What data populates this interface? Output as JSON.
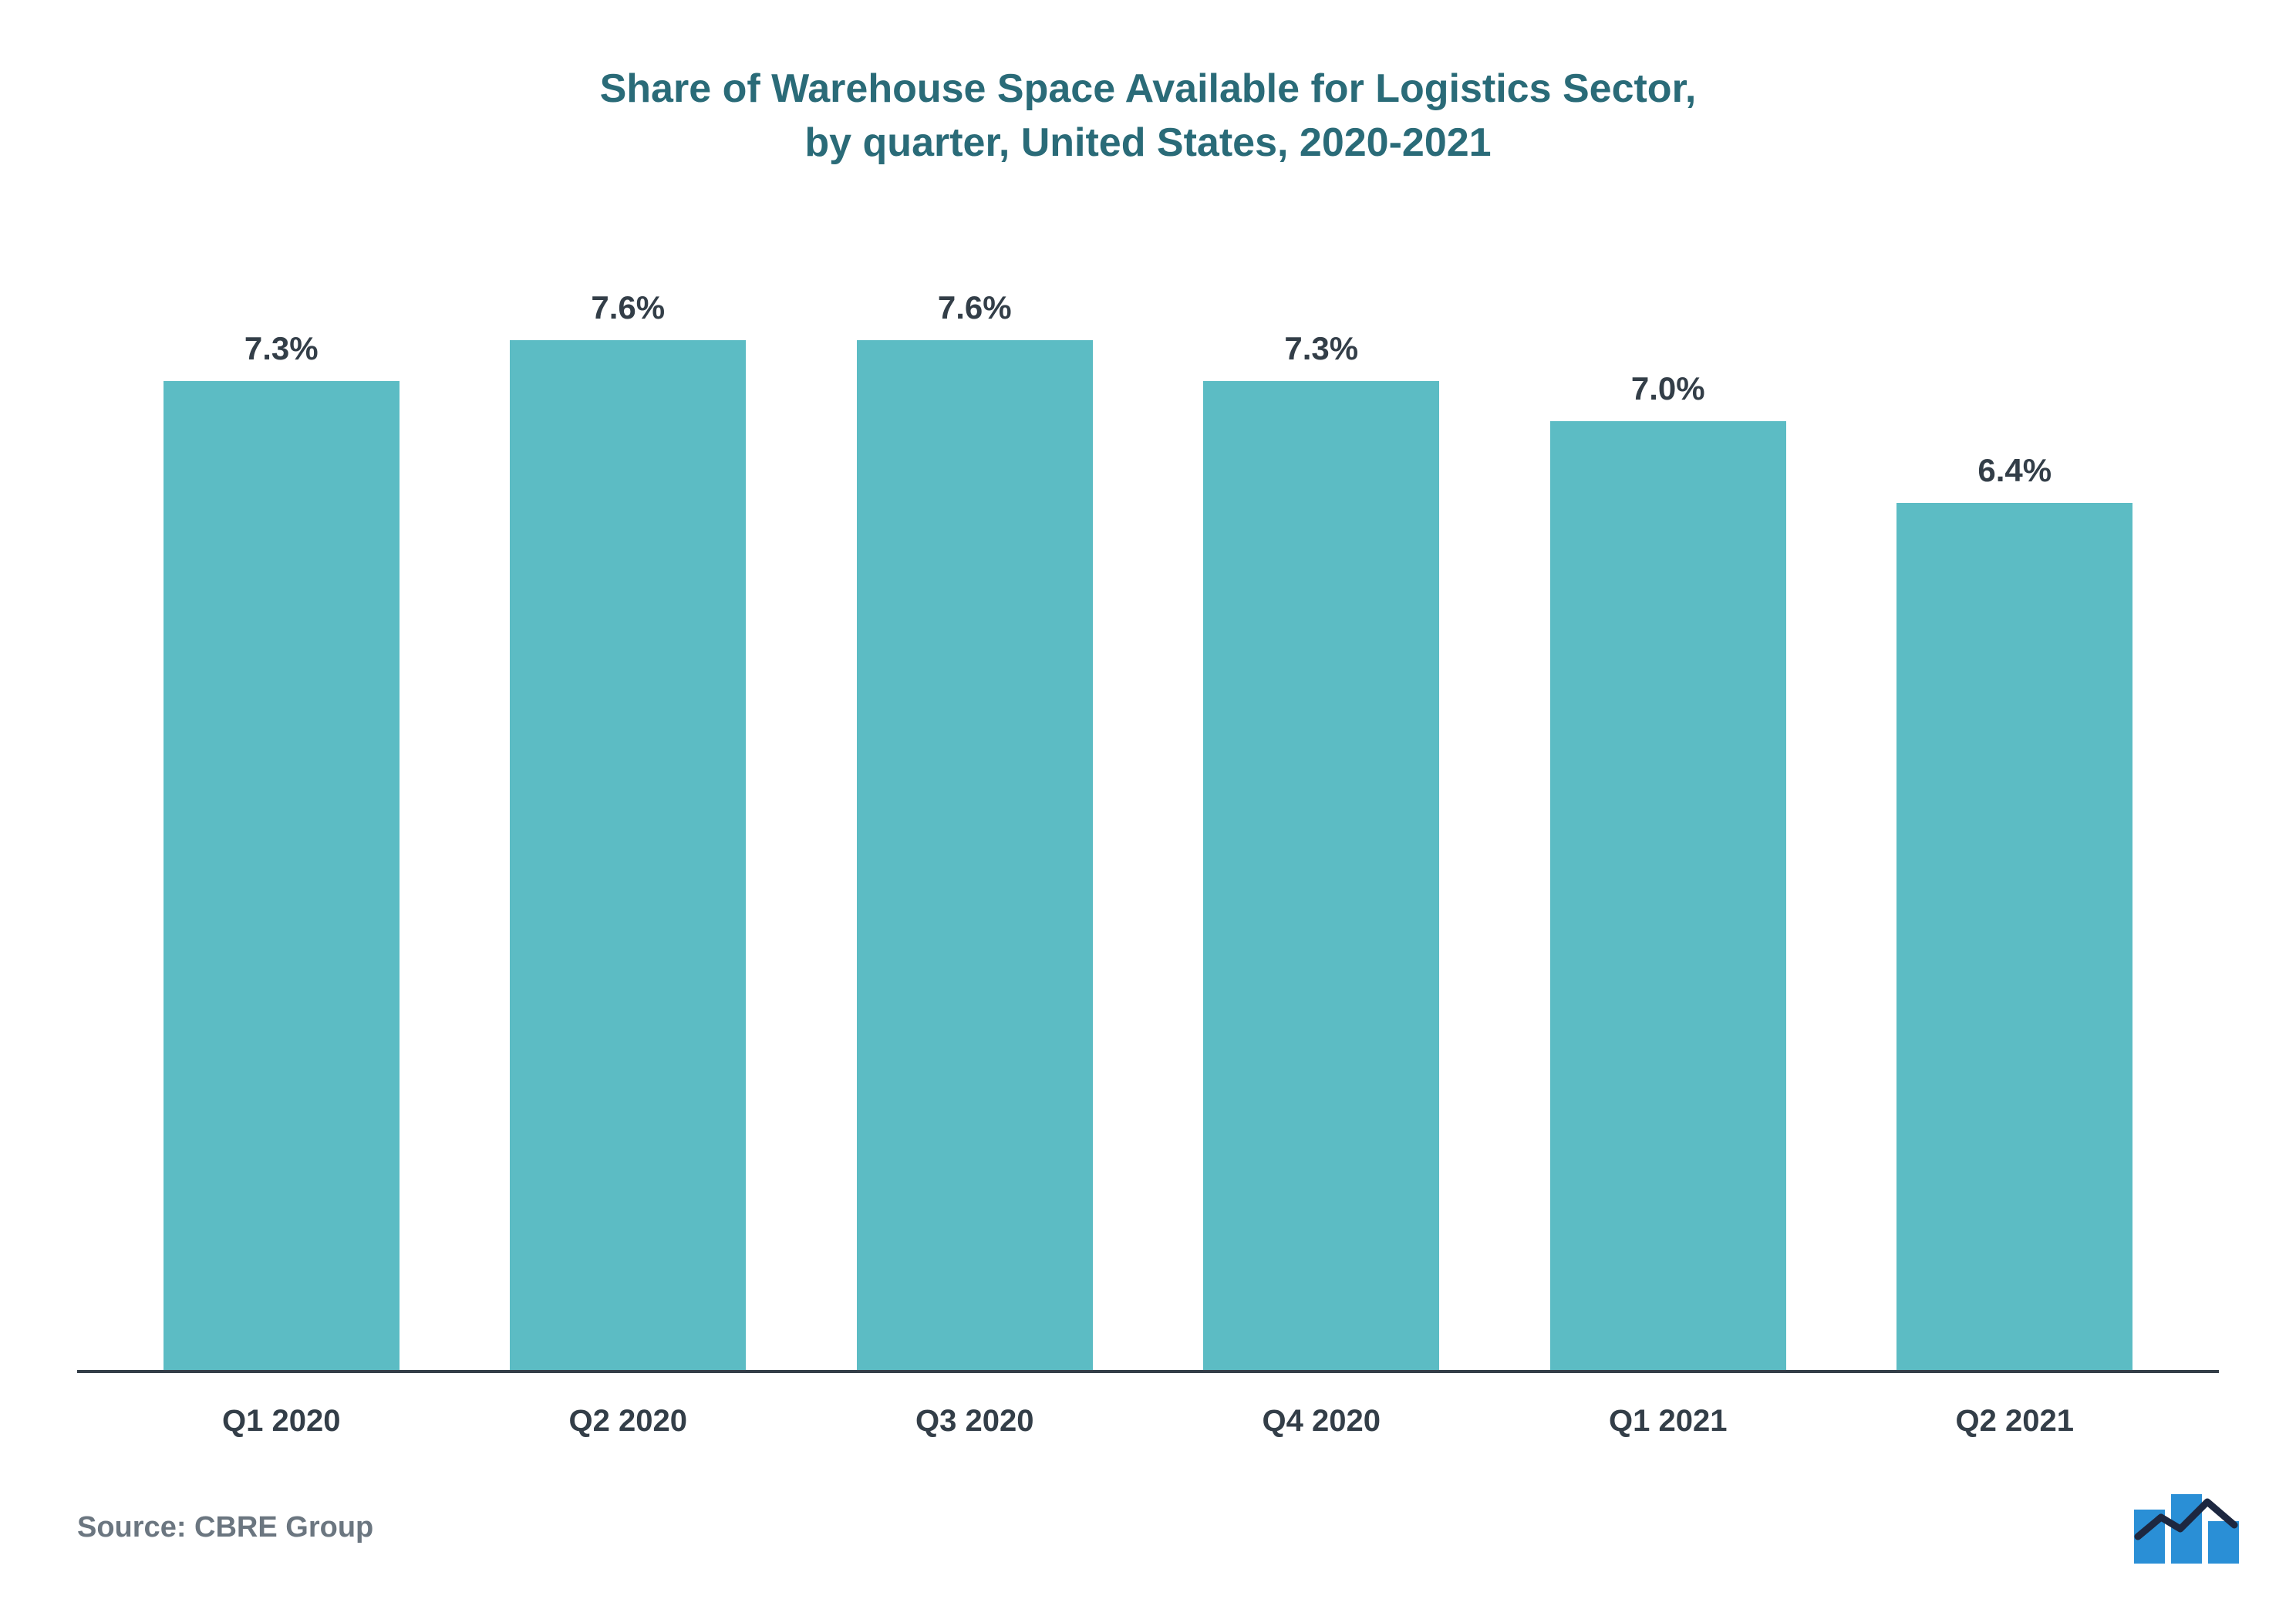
{
  "chart": {
    "type": "bar",
    "title_line1": "Share of Warehouse Space Available for Logistics Sector,",
    "title_line2": "by quarter, United States, 2020-2021",
    "title_fontsize": 52,
    "title_color": "#2a6b78",
    "categories": [
      "Q1 2020",
      "Q2 2020",
      "Q3 2020",
      "Q4 2020",
      "Q1 2021",
      "Q2 2021"
    ],
    "values": [
      7.3,
      7.6,
      7.6,
      7.3,
      7.0,
      6.4
    ],
    "value_labels": [
      "7.3%",
      "7.6%",
      "7.6%",
      "7.3%",
      "7.0%",
      "6.4%"
    ],
    "bar_color": "#5cbcc4",
    "value_label_color": "#333e48",
    "value_label_fontsize": 42,
    "axis_label_color": "#333e48",
    "axis_label_fontsize": 40,
    "axis_line_color": "#333e48",
    "axis_line_width": 4,
    "background_color": "#ffffff",
    "y_max": 8.4,
    "bar_width_ratio": 0.68,
    "source_text": "Source: CBRE Group",
    "source_color": "#6b7680",
    "source_fontsize": 38,
    "logo_fill": "#2a8fd6",
    "logo_accent": "#1d2740"
  }
}
